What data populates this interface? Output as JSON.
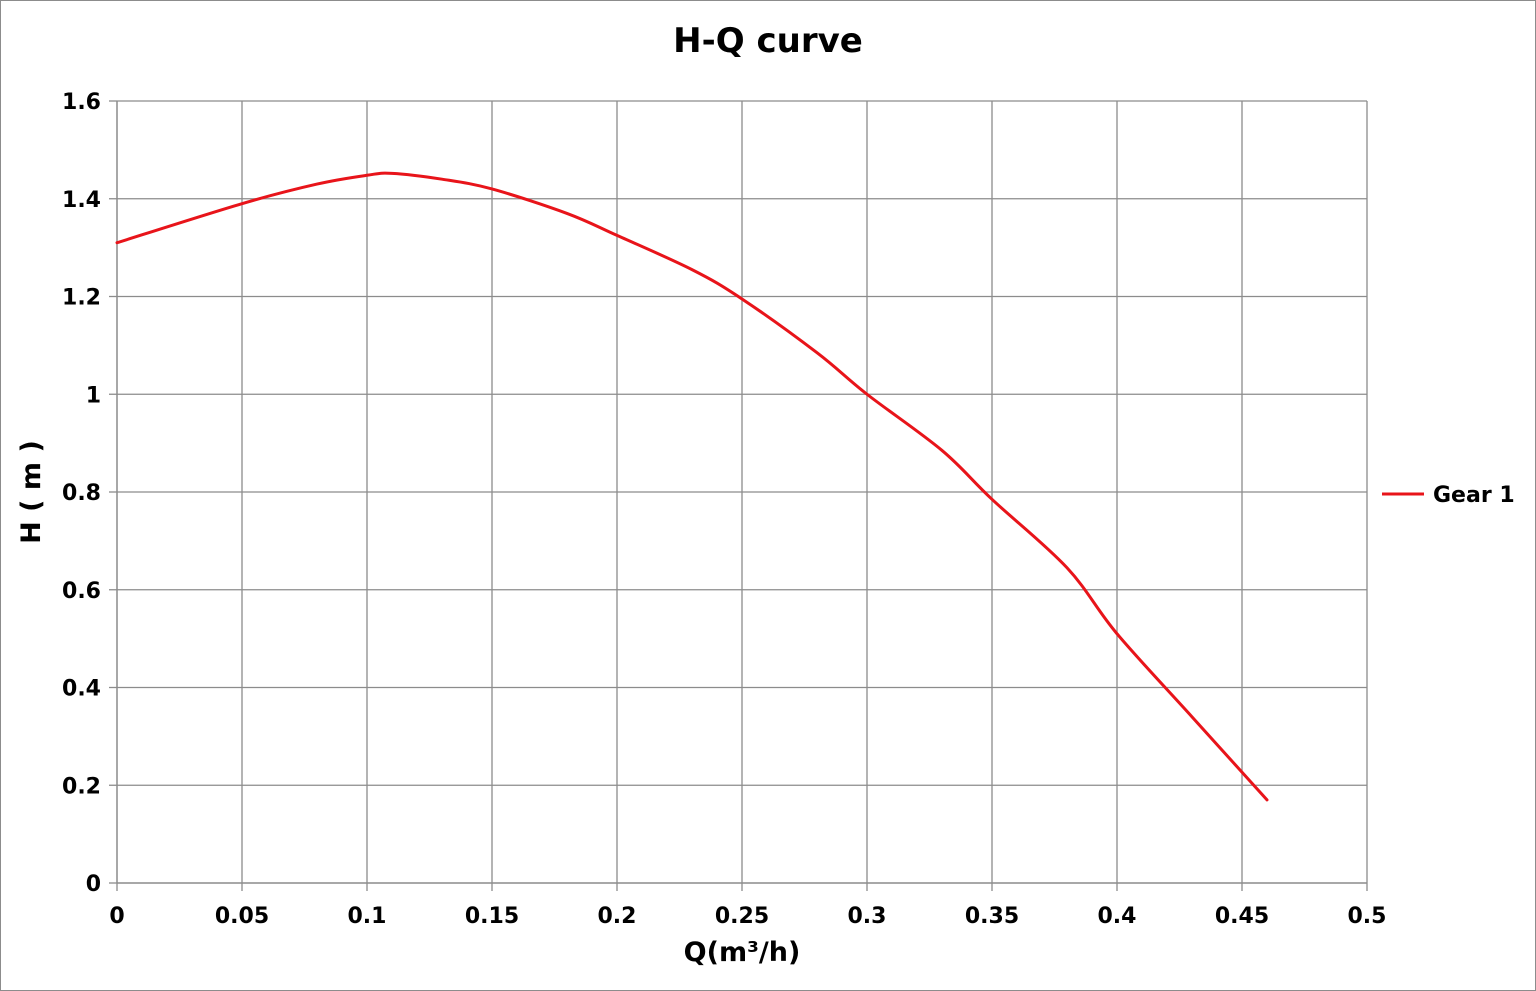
{
  "chart_data": {
    "type": "line",
    "title": "H-Q  curve",
    "xlabel": "Q(m³/h)",
    "ylabel": "H ( m )",
    "xlim": [
      0,
      0.5
    ],
    "ylim": [
      0,
      1.6
    ],
    "x_ticks": [
      "0",
      "0.05",
      "0.1",
      "0.15",
      "0.2",
      "0.25",
      "0.3",
      "0.35",
      "0.4",
      "0.45",
      "0.5"
    ],
    "y_ticks": [
      "0",
      "0.2",
      "0.4",
      "0.6",
      "0.8",
      "1",
      "1.2",
      "1.4",
      "1.6"
    ],
    "grid": true,
    "legend_position": "right",
    "series": [
      {
        "name": "Gear 1",
        "color": "#e8141a",
        "x": [
          0,
          0.05,
          0.08,
          0.1,
          0.11,
          0.13,
          0.15,
          0.18,
          0.2,
          0.23,
          0.25,
          0.28,
          0.3,
          0.33,
          0.35,
          0.38,
          0.4,
          0.43,
          0.46
        ],
        "y": [
          1.31,
          1.39,
          1.43,
          1.448,
          1.452,
          1.44,
          1.42,
          1.37,
          1.325,
          1.255,
          1.195,
          1.085,
          1.0,
          0.885,
          0.785,
          0.645,
          0.51,
          0.34,
          0.17
        ]
      }
    ]
  }
}
